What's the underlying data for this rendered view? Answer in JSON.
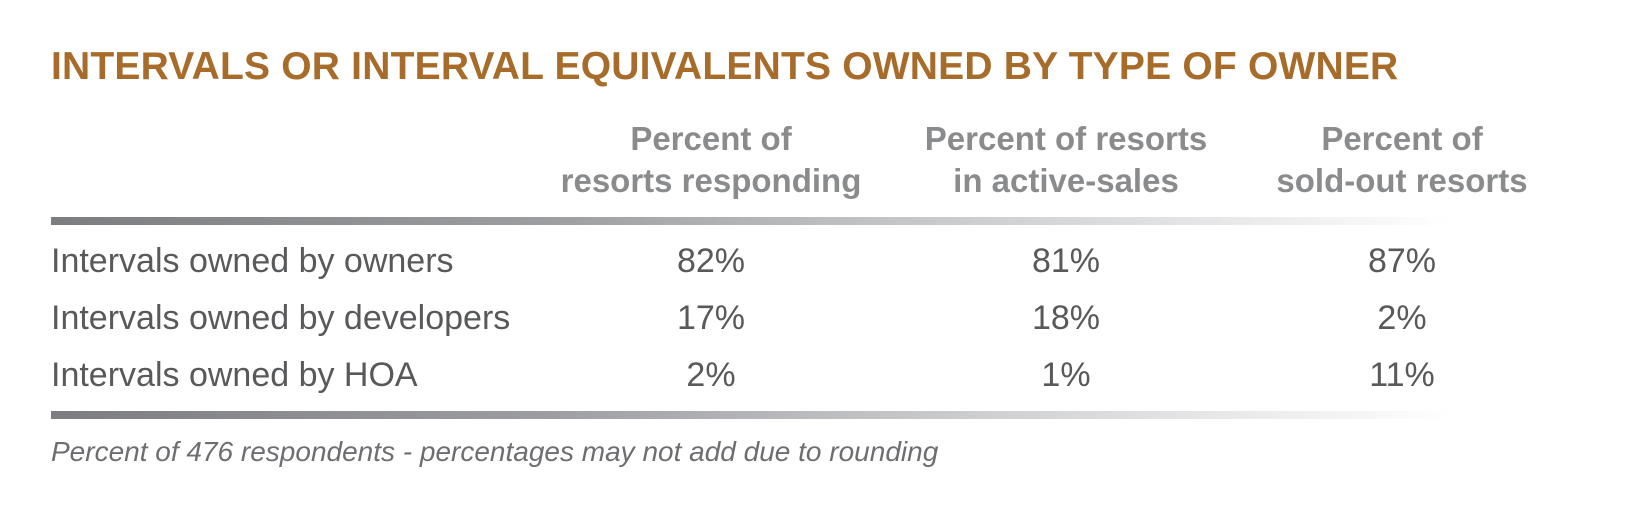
{
  "title": "INTERVALS OR INTERVAL EQUIVALENTS OWNED BY TYPE OF OWNER",
  "columns": [
    {
      "line1": "Percent of",
      "line2": "resorts responding"
    },
    {
      "line1": "Percent of resorts",
      "line2": "in active-sales"
    },
    {
      "line1": "Percent of",
      "line2": "sold-out resorts"
    }
  ],
  "rows": [
    {
      "label": "Intervals owned by owners",
      "values": [
        "82%",
        "81%",
        "87%"
      ]
    },
    {
      "label": "Intervals owned by developers",
      "values": [
        "17%",
        "18%",
        "2%"
      ]
    },
    {
      "label": "Intervals owned by HOA",
      "values": [
        "2%",
        "1%",
        "11%"
      ]
    }
  ],
  "footnote": "Percent of 476 respondents - percentages may not add due to rounding",
  "colors": {
    "title": "#a86c2a",
    "header_text": "#8a8b8d",
    "body_text": "#58595b",
    "rule": "#7c7d80"
  },
  "chart_data": {
    "type": "table",
    "title": "INTERVALS OR INTERVAL EQUIVALENTS OWNED BY TYPE OF OWNER",
    "columns": [
      "Percent of resorts responding",
      "Percent of resorts in active-sales",
      "Percent of sold-out resorts"
    ],
    "rows": [
      "Intervals owned by owners",
      "Intervals owned by developers",
      "Intervals owned by HOA"
    ],
    "series": [
      {
        "name": "Percent of resorts responding",
        "values": [
          82,
          17,
          2
        ]
      },
      {
        "name": "Percent of resorts in active-sales",
        "values": [
          81,
          18,
          1
        ]
      },
      {
        "name": "Percent of sold-out resorts",
        "values": [
          87,
          2,
          11
        ]
      }
    ],
    "unit": "%"
  }
}
